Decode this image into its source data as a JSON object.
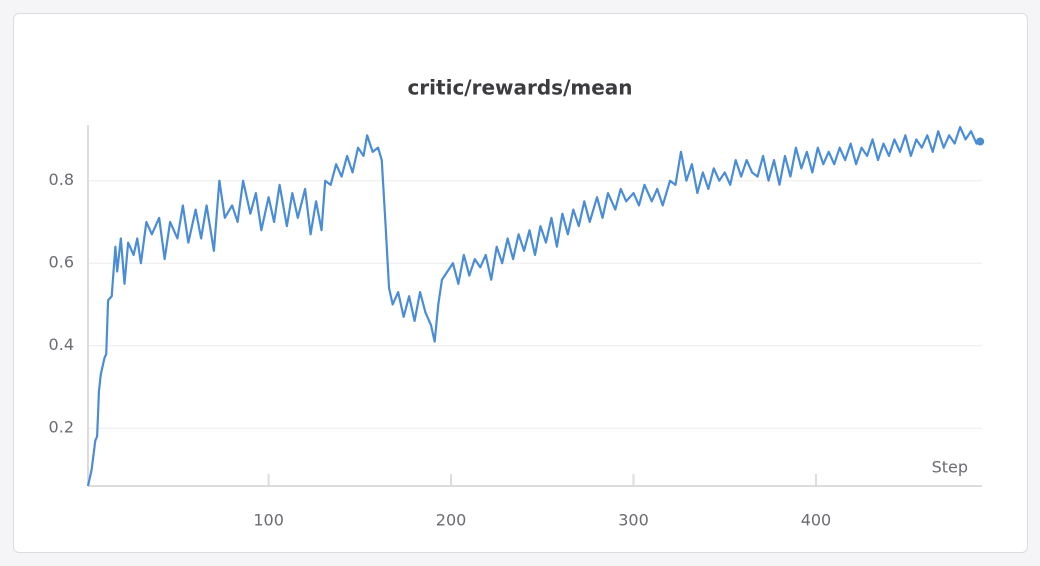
{
  "chart_data": {
    "type": "line",
    "title": "critic/rewards/mean",
    "x_label": "Step",
    "x": [
      1,
      3,
      5,
      6,
      7,
      8,
      10,
      11,
      12,
      14,
      16,
      17,
      19,
      21,
      23,
      26,
      28,
      30,
      33,
      36,
      40,
      43,
      46,
      50,
      53,
      56,
      60,
      63,
      66,
      70,
      73,
      76,
      80,
      83,
      86,
      90,
      93,
      96,
      100,
      103,
      106,
      110,
      113,
      116,
      120,
      123,
      126,
      129,
      131,
      134,
      137,
      140,
      143,
      146,
      149,
      152,
      154,
      157,
      160,
      162,
      164,
      166,
      168,
      171,
      174,
      177,
      180,
      183,
      186,
      189,
      191,
      193,
      195,
      198,
      201,
      204,
      207,
      210,
      213,
      216,
      219,
      222,
      225,
      228,
      231,
      234,
      237,
      240,
      243,
      246,
      249,
      252,
      255,
      258,
      261,
      264,
      267,
      270,
      273,
      276,
      280,
      283,
      286,
      290,
      293,
      296,
      300,
      303,
      306,
      310,
      313,
      316,
      320,
      323,
      326,
      329,
      332,
      335,
      338,
      341,
      344,
      347,
      350,
      353,
      356,
      359,
      362,
      365,
      368,
      371,
      374,
      377,
      380,
      383,
      386,
      389,
      392,
      395,
      398,
      401,
      404,
      407,
      410,
      413,
      416,
      419,
      422,
      425,
      428,
      431,
      434,
      437,
      440,
      443,
      446,
      449,
      452,
      455,
      458,
      461,
      464,
      467,
      470,
      473,
      476,
      479,
      482,
      485,
      488,
      490
    ],
    "series": [
      {
        "color": "#4a8cd6",
        "values": [
          0.06,
          0.1,
          0.17,
          0.18,
          0.29,
          0.33,
          0.37,
          0.38,
          0.51,
          0.52,
          0.64,
          0.58,
          0.66,
          0.55,
          0.65,
          0.62,
          0.66,
          0.6,
          0.7,
          0.67,
          0.71,
          0.61,
          0.7,
          0.66,
          0.74,
          0.65,
          0.73,
          0.66,
          0.74,
          0.63,
          0.8,
          0.71,
          0.74,
          0.7,
          0.8,
          0.72,
          0.77,
          0.68,
          0.76,
          0.7,
          0.79,
          0.69,
          0.77,
          0.71,
          0.78,
          0.67,
          0.75,
          0.68,
          0.8,
          0.79,
          0.84,
          0.81,
          0.86,
          0.82,
          0.88,
          0.86,
          0.91,
          0.87,
          0.88,
          0.85,
          0.7,
          0.54,
          0.5,
          0.53,
          0.47,
          0.52,
          0.46,
          0.53,
          0.48,
          0.45,
          0.41,
          0.5,
          0.56,
          0.58,
          0.6,
          0.55,
          0.62,
          0.57,
          0.61,
          0.59,
          0.62,
          0.56,
          0.64,
          0.6,
          0.66,
          0.61,
          0.67,
          0.63,
          0.68,
          0.62,
          0.69,
          0.65,
          0.71,
          0.64,
          0.72,
          0.67,
          0.73,
          0.69,
          0.75,
          0.7,
          0.76,
          0.71,
          0.77,
          0.73,
          0.78,
          0.75,
          0.77,
          0.74,
          0.79,
          0.75,
          0.78,
          0.74,
          0.8,
          0.79,
          0.87,
          0.8,
          0.84,
          0.77,
          0.82,
          0.78,
          0.83,
          0.8,
          0.82,
          0.79,
          0.85,
          0.81,
          0.85,
          0.82,
          0.81,
          0.86,
          0.8,
          0.85,
          0.79,
          0.86,
          0.81,
          0.88,
          0.83,
          0.87,
          0.82,
          0.88,
          0.84,
          0.87,
          0.84,
          0.88,
          0.85,
          0.89,
          0.84,
          0.88,
          0.86,
          0.9,
          0.85,
          0.89,
          0.86,
          0.9,
          0.87,
          0.91,
          0.86,
          0.9,
          0.88,
          0.91,
          0.87,
          0.92,
          0.88,
          0.91,
          0.89,
          0.93,
          0.9,
          0.92,
          0.89,
          0.895
        ]
      }
    ],
    "xlim": [
      1,
      491
    ],
    "ylim": [
      0.06,
      0.935
    ],
    "xticks": [
      100,
      200,
      300,
      400
    ],
    "yticks": [
      0.2,
      0.4,
      0.6,
      0.8
    ],
    "grid": true
  }
}
